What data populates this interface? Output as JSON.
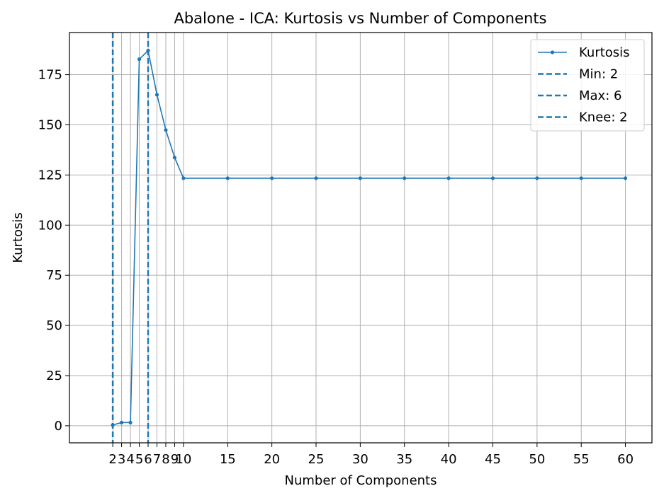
{
  "chart_data": {
    "type": "line",
    "title": "Abalone - ICA: Kurtosis vs Number of Components",
    "xlabel": "Number of Components",
    "ylabel": "Kurtosis",
    "xlim": [
      -2.9,
      63
    ],
    "ylim": [
      -8.5,
      196
    ],
    "grid": true,
    "legend_position": "top-right",
    "x_ticks": [
      2,
      3,
      4,
      5,
      6,
      7,
      8,
      9,
      10,
      15,
      20,
      25,
      30,
      35,
      40,
      45,
      50,
      55,
      60
    ],
    "x_tick_labels": [
      "2",
      "3",
      "4",
      "5",
      "6",
      "7",
      "8",
      "9",
      "10",
      "15",
      "20",
      "25",
      "30",
      "35",
      "40",
      "45",
      "50",
      "55",
      "60"
    ],
    "y_ticks": [
      0,
      25,
      50,
      75,
      100,
      125,
      150,
      175
    ],
    "y_tick_labels": [
      "0",
      "25",
      "50",
      "75",
      "100",
      "125",
      "150",
      "175"
    ],
    "series": [
      {
        "name": "Kurtosis",
        "color": "#1f77b4",
        "x": [
          2,
          3,
          4,
          5,
          6,
          7,
          8,
          9,
          10,
          15,
          20,
          25,
          30,
          35,
          40,
          45,
          50,
          55,
          60
        ],
        "y": [
          0.4,
          1.6,
          1.6,
          182.7,
          187.0,
          165.0,
          147.4,
          133.7,
          123.4,
          123.4,
          123.4,
          123.4,
          123.4,
          123.4,
          123.4,
          123.4,
          123.4,
          123.4,
          123.4
        ]
      }
    ],
    "vlines": [
      {
        "name": "Min: 2",
        "x": 2,
        "color": "#1f77b4",
        "style": "dashed"
      },
      {
        "name": "Max: 6",
        "x": 6,
        "color": "#1f77b4",
        "style": "dashed"
      },
      {
        "name": "Knee: 2",
        "x": 2,
        "color": "#1f77b4",
        "style": "dashed"
      }
    ],
    "legend": [
      "Kurtosis",
      "Min: 2",
      "Max: 6",
      "Knee: 2"
    ]
  }
}
